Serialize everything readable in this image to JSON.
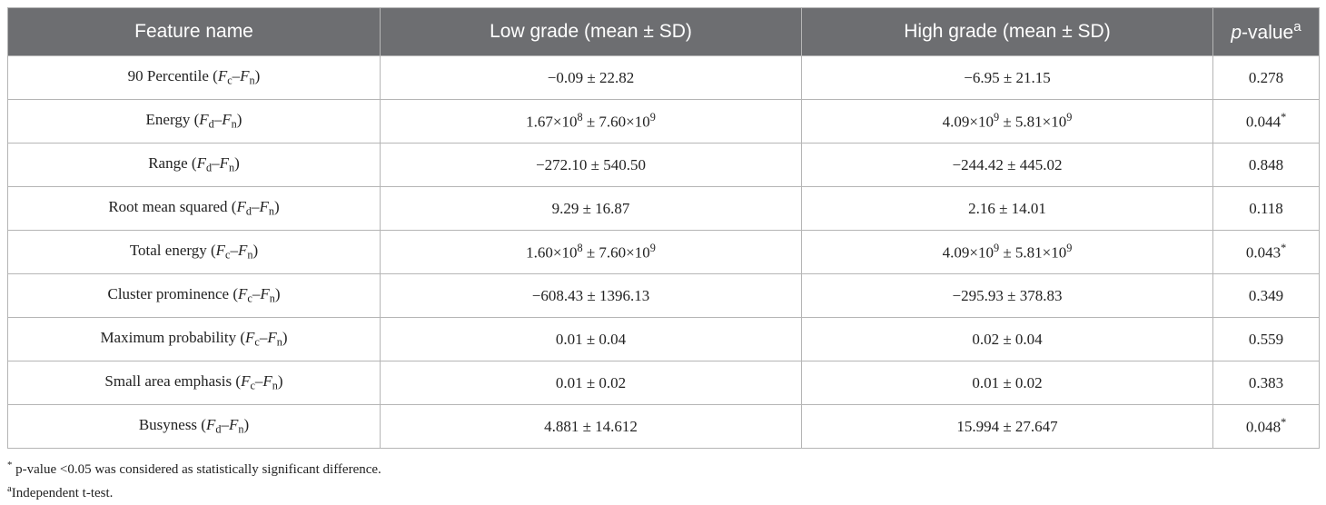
{
  "table": {
    "header": [
      [
        {
          "t": "Feature name"
        }
      ],
      [
        {
          "t": "Low grade (mean ± SD)"
        }
      ],
      [
        {
          "t": "High grade (mean ± SD)"
        }
      ],
      [
        {
          "t": "p",
          "s": "i"
        },
        {
          "t": "-value"
        },
        {
          "t": "a",
          "s": "sup"
        }
      ]
    ],
    "rows": [
      [
        [
          {
            "t": "90 Percentile ("
          },
          {
            "t": "F",
            "s": "i"
          },
          {
            "t": "c",
            "s": "sub"
          },
          {
            "t": "–"
          },
          {
            "t": "F",
            "s": "i"
          },
          {
            "t": "n",
            "s": "sub"
          },
          {
            "t": ")"
          }
        ],
        [
          {
            "t": "−0.09 ± 22.82"
          }
        ],
        [
          {
            "t": "−6.95 ± 21.15"
          }
        ],
        [
          {
            "t": "0.278"
          }
        ]
      ],
      [
        [
          {
            "t": "Energy ("
          },
          {
            "t": "F",
            "s": "i"
          },
          {
            "t": "d",
            "s": "sub"
          },
          {
            "t": "–"
          },
          {
            "t": "F",
            "s": "i"
          },
          {
            "t": "n",
            "s": "sub"
          },
          {
            "t": ")"
          }
        ],
        [
          {
            "t": "1.67×10"
          },
          {
            "t": "8",
            "s": "sup"
          },
          {
            "t": " ± 7.60×10"
          },
          {
            "t": "9",
            "s": "sup"
          }
        ],
        [
          {
            "t": "4.09×10"
          },
          {
            "t": "9",
            "s": "sup"
          },
          {
            "t": " ± 5.81×10"
          },
          {
            "t": "9",
            "s": "sup"
          }
        ],
        [
          {
            "t": "0.044"
          },
          {
            "t": "*",
            "s": "sup"
          }
        ]
      ],
      [
        [
          {
            "t": "Range ("
          },
          {
            "t": "F",
            "s": "i"
          },
          {
            "t": "d",
            "s": "sub"
          },
          {
            "t": "–"
          },
          {
            "t": "F",
            "s": "i"
          },
          {
            "t": "n",
            "s": "sub"
          },
          {
            "t": ")"
          }
        ],
        [
          {
            "t": "−272.10 ± 540.50"
          }
        ],
        [
          {
            "t": "−244.42 ± 445.02"
          }
        ],
        [
          {
            "t": "0.848"
          }
        ]
      ],
      [
        [
          {
            "t": "Root mean squared ("
          },
          {
            "t": "F",
            "s": "i"
          },
          {
            "t": "d",
            "s": "sub"
          },
          {
            "t": "–"
          },
          {
            "t": "F",
            "s": "i"
          },
          {
            "t": "n",
            "s": "sub"
          },
          {
            "t": ")"
          }
        ],
        [
          {
            "t": "9.29 ± 16.87"
          }
        ],
        [
          {
            "t": "2.16 ± 14.01"
          }
        ],
        [
          {
            "t": "0.118"
          }
        ]
      ],
      [
        [
          {
            "t": "Total energy ("
          },
          {
            "t": "F",
            "s": "i"
          },
          {
            "t": "c",
            "s": "sub"
          },
          {
            "t": "–"
          },
          {
            "t": "F",
            "s": "i"
          },
          {
            "t": "n",
            "s": "sub"
          },
          {
            "t": ")"
          }
        ],
        [
          {
            "t": "1.60×10"
          },
          {
            "t": "8",
            "s": "sup"
          },
          {
            "t": " ± 7.60×10"
          },
          {
            "t": "9",
            "s": "sup"
          }
        ],
        [
          {
            "t": "4.09×10"
          },
          {
            "t": "9",
            "s": "sup"
          },
          {
            "t": " ± 5.81×10"
          },
          {
            "t": "9",
            "s": "sup"
          }
        ],
        [
          {
            "t": "0.043"
          },
          {
            "t": "*",
            "s": "sup"
          }
        ]
      ],
      [
        [
          {
            "t": "Cluster prominence ("
          },
          {
            "t": "F",
            "s": "i"
          },
          {
            "t": "c",
            "s": "sub"
          },
          {
            "t": "–"
          },
          {
            "t": "F",
            "s": "i"
          },
          {
            "t": "n",
            "s": "sub"
          },
          {
            "t": ")"
          }
        ],
        [
          {
            "t": "−608.43 ± 1396.13"
          }
        ],
        [
          {
            "t": "−295.93 ± 378.83"
          }
        ],
        [
          {
            "t": "0.349"
          }
        ]
      ],
      [
        [
          {
            "t": "Maximum probability ("
          },
          {
            "t": "F",
            "s": "i"
          },
          {
            "t": "c",
            "s": "sub"
          },
          {
            "t": "–"
          },
          {
            "t": "F",
            "s": "i"
          },
          {
            "t": "n",
            "s": "sub"
          },
          {
            "t": ")"
          }
        ],
        [
          {
            "t": "0.01 ± 0.04"
          }
        ],
        [
          {
            "t": "0.02 ± 0.04"
          }
        ],
        [
          {
            "t": "0.559"
          }
        ]
      ],
      [
        [
          {
            "t": "Small area emphasis ("
          },
          {
            "t": "F",
            "s": "i"
          },
          {
            "t": "c",
            "s": "sub"
          },
          {
            "t": "–"
          },
          {
            "t": "F",
            "s": "i"
          },
          {
            "t": "n",
            "s": "sub"
          },
          {
            "t": ")"
          }
        ],
        [
          {
            "t": "0.01 ± 0.02"
          }
        ],
        [
          {
            "t": "0.01 ± 0.02"
          }
        ],
        [
          {
            "t": "0.383"
          }
        ]
      ],
      [
        [
          {
            "t": "Busyness ("
          },
          {
            "t": "F",
            "s": "i"
          },
          {
            "t": "d",
            "s": "sub"
          },
          {
            "t": "–"
          },
          {
            "t": "F",
            "s": "i"
          },
          {
            "t": "n",
            "s": "sub"
          },
          {
            "t": ")"
          }
        ],
        [
          {
            "t": "4.881 ± 14.612"
          }
        ],
        [
          {
            "t": "15.994 ± 27.647"
          }
        ],
        [
          {
            "t": "0.048"
          },
          {
            "t": "*",
            "s": "sup"
          }
        ]
      ]
    ],
    "footnotes": [
      [
        {
          "t": "*",
          "s": "sup"
        },
        {
          "t": " p-value <0.05 was considered as statistically significant difference."
        }
      ],
      [
        {
          "t": "a",
          "s": "sup"
        },
        {
          "t": "Independent t-test."
        }
      ]
    ]
  }
}
